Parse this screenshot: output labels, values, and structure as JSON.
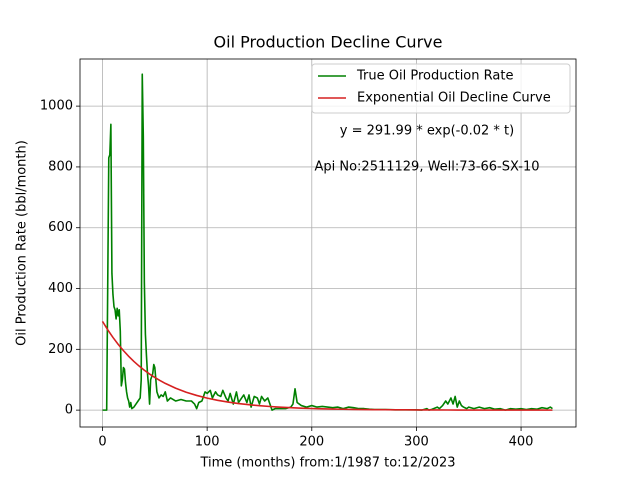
{
  "chart_data": {
    "type": "line",
    "title": "Oil Production Decline Curve",
    "xlabel": "Time (months) from:1/1987 to:12/2023",
    "ylabel": "Oil Production Rate (bbl/month)",
    "annotations": [
      "y = 291.99 * exp(-0.02 * t)",
      "Api No:2511129, Well:73-66-SX-10"
    ],
    "xlim": [
      -21.5,
      452.5
    ],
    "ylim": [
      -55.5,
      1155
    ],
    "xticks": [
      0,
      100,
      200,
      300,
      400
    ],
    "yticks": [
      0,
      200,
      400,
      600,
      800,
      1000
    ],
    "grid": true,
    "legend": "upper right",
    "series": [
      {
        "name": "True Oil Production Rate",
        "color": "#008000",
        "x": [
          0,
          2,
          4,
          6,
          7,
          8,
          9,
          10,
          11,
          12,
          13,
          14,
          15,
          16,
          17,
          18,
          19,
          20,
          21,
          22,
          23,
          24,
          25,
          26,
          27,
          28,
          30,
          32,
          34,
          36,
          37,
          38,
          39,
          40,
          41,
          42,
          43,
          44,
          45,
          46,
          48,
          49,
          50,
          51,
          52,
          54,
          56,
          58,
          60,
          62,
          65,
          70,
          75,
          80,
          85,
          88,
          90,
          92,
          95,
          98,
          100,
          103,
          105,
          108,
          110,
          113,
          115,
          118,
          120,
          122,
          125,
          128,
          130,
          133,
          135,
          138,
          140,
          142,
          145,
          148,
          150,
          152,
          155,
          158,
          160,
          162,
          165,
          170,
          175,
          180,
          182,
          184,
          186,
          190,
          195,
          200,
          205,
          210,
          215,
          220,
          225,
          230,
          235,
          240,
          245,
          250,
          255,
          260,
          270,
          280,
          290,
          300,
          305,
          310,
          312,
          315,
          320,
          322,
          325,
          328,
          330,
          333,
          335,
          337,
          339,
          341,
          343,
          345,
          348,
          350,
          355,
          360,
          365,
          370,
          375,
          380,
          385,
          390,
          395,
          400,
          405,
          410,
          415,
          420,
          425,
          428,
          430
        ],
        "values": [
          0,
          0,
          0,
          830,
          840,
          940,
          450,
          380,
          340,
          330,
          300,
          335,
          310,
          330,
          260,
          80,
          100,
          140,
          135,
          90,
          60,
          40,
          30,
          10,
          25,
          5,
          10,
          20,
          30,
          40,
          100,
          1105,
          900,
          420,
          250,
          180,
          120,
          80,
          20,
          100,
          120,
          150,
          140,
          100,
          60,
          40,
          50,
          45,
          60,
          30,
          40,
          30,
          35,
          30,
          30,
          20,
          5,
          25,
          30,
          60,
          55,
          65,
          40,
          60,
          50,
          45,
          65,
          40,
          30,
          55,
          20,
          60,
          25,
          40,
          50,
          25,
          50,
          10,
          45,
          40,
          20,
          45,
          30,
          40,
          20,
          0,
          5,
          5,
          5,
          10,
          20,
          70,
          25,
          15,
          10,
          15,
          10,
          12,
          10,
          8,
          10,
          5,
          10,
          8,
          5,
          5,
          3,
          2,
          2,
          1,
          1,
          1,
          0,
          5,
          0,
          3,
          10,
          5,
          15,
          30,
          20,
          40,
          20,
          45,
          10,
          30,
          15,
          10,
          5,
          10,
          5,
          10,
          5,
          8,
          3,
          5,
          0,
          5,
          3,
          5,
          2,
          5,
          3,
          8,
          5,
          10,
          5
        ]
      },
      {
        "name": "Exponential Oil Decline Curve",
        "color": "#d62020",
        "x": [
          0,
          5,
          10,
          15,
          20,
          25,
          30,
          35,
          40,
          45,
          50,
          55,
          60,
          70,
          80,
          90,
          100,
          110,
          120,
          130,
          140,
          150,
          160,
          170,
          180,
          190,
          200,
          210,
          220,
          230,
          240,
          250,
          260,
          270,
          280,
          290,
          300,
          310,
          320,
          330,
          340,
          350,
          360,
          370,
          380,
          390,
          400,
          410,
          420,
          430
        ],
        "values": [
          292,
          264.2,
          239.1,
          216.3,
          195.7,
          177.1,
          160.2,
          145,
          131.2,
          118.7,
          107.4,
          97.2,
          87.9,
          72,
          58.9,
          48.3,
          39.5,
          32.4,
          26.5,
          21.7,
          17.8,
          14.5,
          11.9,
          9.7,
          8,
          6.5,
          5.4,
          4.4,
          3.6,
          2.9,
          2.4,
          2,
          1.6,
          1.3,
          1.1,
          0.9,
          0.7,
          0.6,
          0.5,
          0.4,
          0.3,
          0.3,
          0.2,
          0.2,
          0.1,
          0.1,
          0.1,
          0.1,
          0.1,
          0
        ]
      }
    ]
  }
}
